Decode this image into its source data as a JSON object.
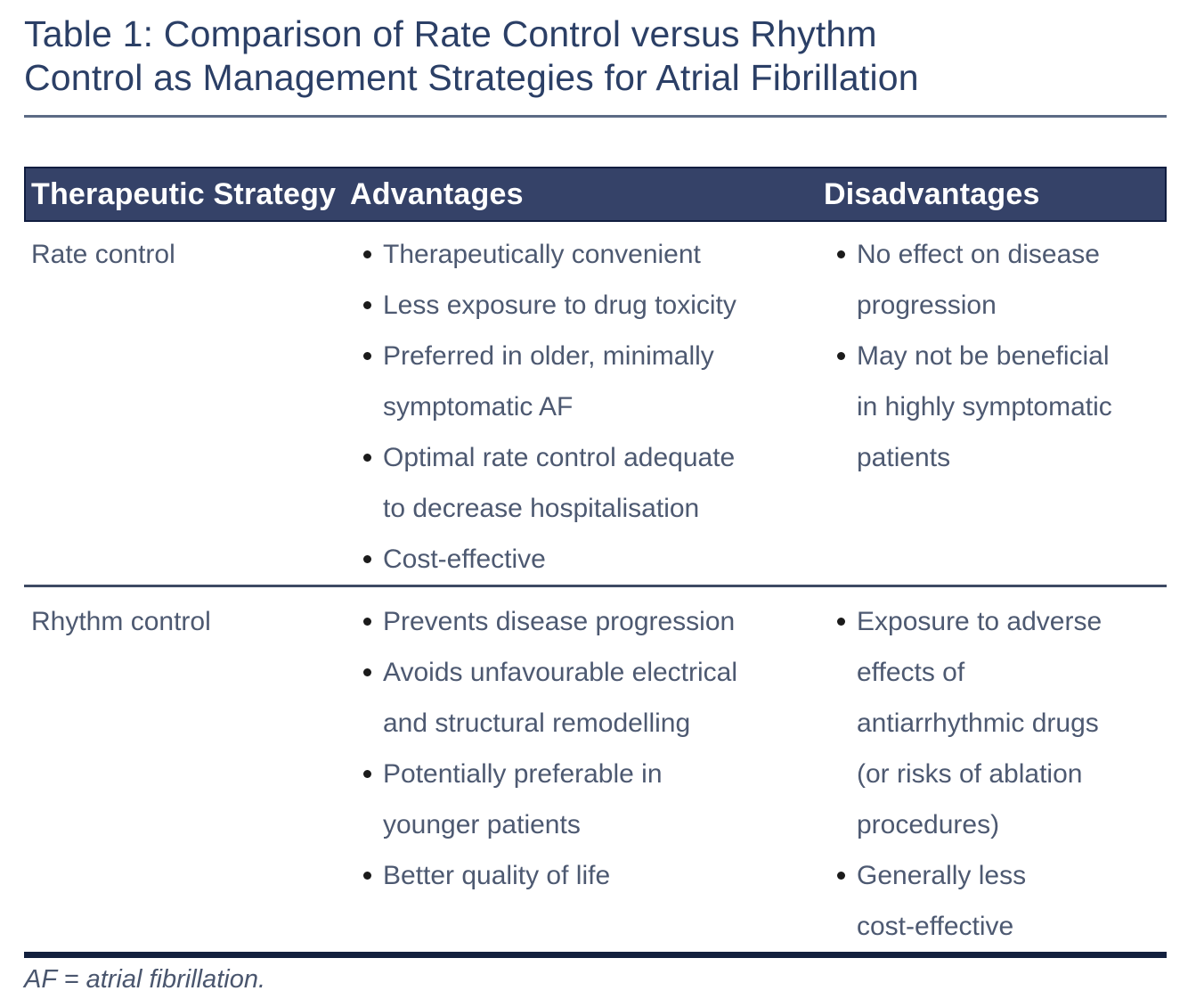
{
  "title": "Table 1: Comparison of Rate Control versus Rhythm\nControl as Management Strategies for Atrial Fibrillation",
  "table": {
    "columns": [
      "Therapeutic Strategy",
      "Advantages",
      "Disadvantages"
    ],
    "rows": [
      {
        "strategy": "Rate control",
        "advantages": [
          "Therapeutically convenient",
          "Less exposure to drug toxicity",
          "Preferred in older, minimally\nsymptomatic AF",
          "Optimal rate control adequate\nto decrease hospitalisation",
          "Cost-effective"
        ],
        "disadvantages": [
          "No effect on disease\nprogression",
          "May not be beneficial\nin highly symptomatic\npatients"
        ]
      },
      {
        "strategy": "Rhythm control",
        "advantages": [
          "Prevents disease progression",
          "Avoids unfavourable electrical\nand structural remodelling",
          "Potentially preferable in\nyounger patients",
          "Better quality of life"
        ],
        "disadvantages": [
          "Exposure to adverse\neffects of\nantiarrhythmic drugs\n(or risks of ablation\nprocedures)",
          "Generally less\ncost-effective"
        ]
      }
    ]
  },
  "footnote": "AF = atrial fibrillation.",
  "colors": {
    "title": "#2b3f66",
    "header_bg": "#354268",
    "header_border": "#101d40",
    "header_text": "#ffffff",
    "body_text": "#4d5971",
    "bullet": "#1b1b1b",
    "title_rule": "#5c6b85",
    "row_divider": "#3e4a63",
    "bottom_border": "#13203e"
  }
}
